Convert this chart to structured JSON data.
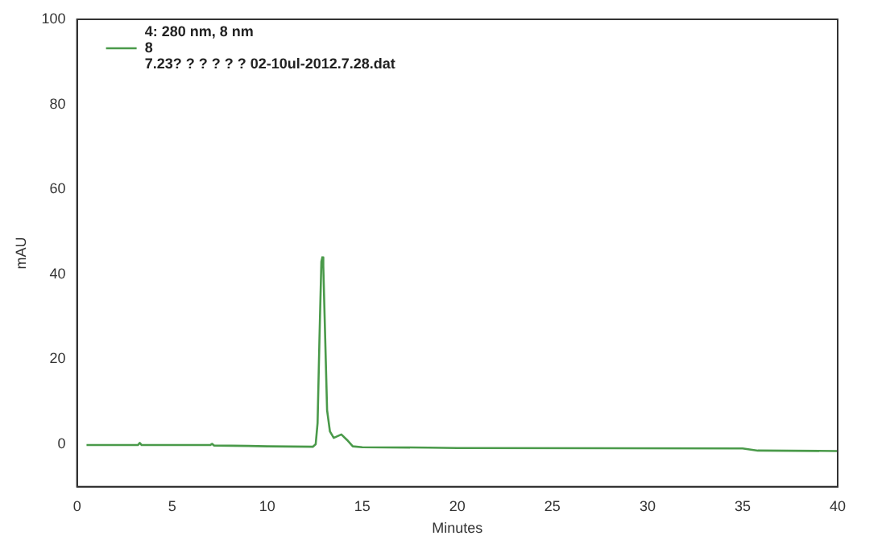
{
  "chart_data": {
    "type": "line",
    "xlabel": "Minutes",
    "ylabel": "mAU",
    "legend_title": "4: 280 nm, 8 nm",
    "annotations": [
      "7.23? ? ? ? ? ? 02-10ul-2012.7.28.dat"
    ],
    "xlim": [
      0,
      40
    ],
    "xticks": [
      0,
      5,
      10,
      15,
      20,
      25,
      30,
      35,
      40
    ],
    "ylim": [
      -10,
      100
    ],
    "yticks": [
      0,
      20,
      40,
      60,
      80,
      100
    ],
    "grid": false,
    "legend": "top left",
    "marker": "none",
    "line_style": "solid",
    "series": [
      {
        "name": "8",
        "color": "#4a9a4a",
        "x": [
          0.5,
          3.2,
          3.3,
          3.4,
          7,
          7.1,
          7.2,
          9,
          10,
          12.4,
          12.55,
          12.65,
          12.75,
          12.85,
          12.9,
          12.95,
          13.05,
          13.15,
          13.3,
          13.5,
          13.9,
          14.2,
          14.5,
          15,
          18.5,
          20,
          35,
          35.8,
          40
        ],
        "values": [
          -0.2,
          -0.2,
          0.3,
          -0.2,
          -0.2,
          0.1,
          -0.3,
          -0.4,
          -0.5,
          -0.6,
          0,
          5,
          25,
          43,
          44,
          42,
          25,
          8,
          3,
          1.5,
          2.3,
          1,
          -0.5,
          -0.7,
          -0.8,
          -0.9,
          -1,
          -1.5,
          -1.6
        ]
      }
    ]
  }
}
